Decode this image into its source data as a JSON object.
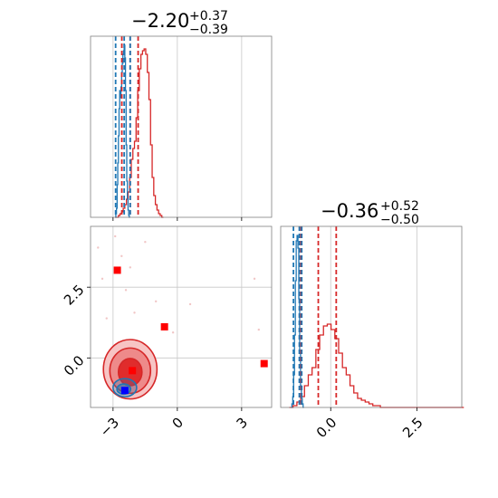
{
  "colors": {
    "red": "#d62728",
    "blue": "#1f77b4",
    "redFill": "#f4a3a3",
    "redDark": "#e03030"
  },
  "chart_data": {
    "type": "corner",
    "panels": [
      {
        "id": "p1",
        "type": "histogram",
        "xlim": [
          -4.05,
          4.4
        ],
        "title": {
          "value": "−2.20",
          "plus": "+0.37",
          "minus": "−0.39"
        },
        "quantile_lines": {
          "red": [
            -2.59,
            -2.2,
            -1.83
          ],
          "blue": [
            -2.88,
            -2.48,
            -2.2
          ]
        },
        "hist_red": {
          "start": -2.9,
          "step": 0.075,
          "counts": [
            0,
            0,
            1,
            2,
            3,
            5,
            7,
            10,
            14,
            22,
            32,
            38,
            42,
            55,
            70,
            82,
            90,
            92,
            93,
            90,
            80,
            65,
            40,
            22,
            12,
            7,
            4,
            2,
            1,
            0
          ]
        },
        "hist_blue": {
          "start": -2.9,
          "step": 0.03,
          "counts": [
            0,
            2,
            5,
            18,
            30,
            45,
            60,
            70,
            66,
            72,
            80,
            85,
            90,
            92,
            95,
            88,
            70,
            40,
            20,
            10,
            4,
            1,
            0
          ]
        }
      },
      {
        "id": "p2",
        "type": "histogram",
        "xlim": [
          -1.45,
          3.8
        ],
        "title": {
          "value": "−0.36",
          "plus": "+0.52",
          "minus": "−0.50"
        },
        "xticks": [
          0.0,
          2.5
        ],
        "xtick_labels": [
          "0.0",
          "2.5"
        ],
        "quantile_lines": {
          "red": [
            -0.86,
            -0.36,
            0.16
          ],
          "blue": [
            -1.08,
            -0.91,
            -0.84
          ]
        },
        "hist_red": {
          "start": -1.2,
          "step": 0.11,
          "counts": [
            0,
            1,
            3,
            6,
            12,
            18,
            22,
            32,
            40,
            45,
            46,
            43,
            38,
            30,
            22,
            18,
            12,
            8,
            5,
            4,
            3,
            2,
            1,
            1,
            0,
            0,
            0,
            0,
            0,
            0,
            0,
            0,
            0,
            0,
            0,
            0,
            0,
            0,
            0,
            0,
            0,
            0,
            0,
            0,
            0,
            0
          ]
        },
        "hist_blue": {
          "start": -1.15,
          "step": 0.025,
          "counts": [
            0,
            2,
            6,
            18,
            40,
            70,
            92,
            95,
            88,
            60,
            30,
            12,
            5,
            2,
            0
          ]
        }
      },
      {
        "id": "p3",
        "type": "scatter2d",
        "xlim": [
          -4.05,
          4.4
        ],
        "ylim": [
          -1.75,
          4.65
        ],
        "xticks": [
          -3,
          0,
          3
        ],
        "xtick_labels": [
          "−3",
          "0",
          "3"
        ],
        "yticks": [
          0.0,
          2.5
        ],
        "ytick_labels": [
          "0.0",
          "2.5"
        ],
        "red_contours": [
          {
            "cx": -2.2,
            "cy": -0.4,
            "rx": 1.25,
            "ry": 1.05,
            "level": "outer"
          },
          {
            "cx": -2.2,
            "cy": -0.45,
            "rx": 0.95,
            "ry": 0.8,
            "level": "mid"
          },
          {
            "cx": -2.2,
            "cy": -0.5,
            "rx": 0.55,
            "ry": 0.48,
            "level": "inner"
          }
        ],
        "blue_contours": [
          {
            "cx": -2.45,
            "cy": -1.05,
            "rx": 0.55,
            "ry": 0.32
          },
          {
            "cx": -2.5,
            "cy": -1.1,
            "rx": 0.32,
            "ry": 0.18
          }
        ],
        "markers_red": [
          [
            -2.8,
            3.1
          ],
          [
            -0.6,
            1.1
          ],
          [
            -2.1,
            -0.45
          ],
          [
            4.05,
            -0.2
          ]
        ],
        "markers_blue": [
          [
            -2.45,
            -1.15
          ]
        ],
        "sparse_points": [
          [
            -2.9,
            4.3
          ],
          [
            -2.6,
            3.6
          ],
          [
            -2.2,
            3.2
          ],
          [
            -3.5,
            2.8
          ],
          [
            -1.0,
            2.0
          ],
          [
            0.6,
            1.9
          ],
          [
            -3.3,
            1.4
          ],
          [
            -2.0,
            1.6
          ],
          [
            3.6,
            2.8
          ],
          [
            3.8,
            1.0
          ],
          [
            -1.5,
            4.1
          ],
          [
            -3.7,
            3.9
          ],
          [
            -0.2,
            0.9
          ],
          [
            -2.4,
            2.4
          ]
        ]
      }
    ]
  }
}
